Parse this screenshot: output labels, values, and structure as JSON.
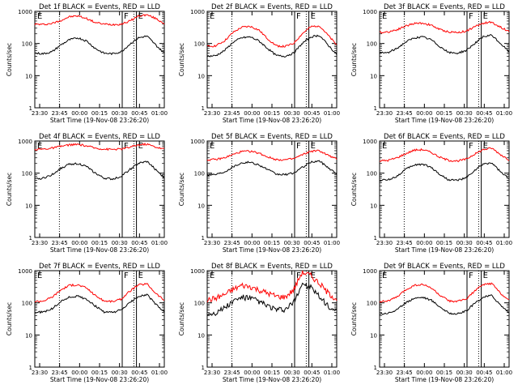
{
  "chart_data": [
    {
      "type": "line",
      "title": "Det 1f BLACK = Events, RED = LLD",
      "xlabel": "Start Time (19-Nov-08 23:26:20)",
      "ylabel": "Counts/sec",
      "xticks": [
        "23:30",
        "23:45",
        "00:00",
        "00:15",
        "00:30",
        "00:45",
        "01:00"
      ],
      "yticks": [
        "1",
        "10",
        "100",
        "1000"
      ],
      "yscale": "log",
      "ylim": [
        1,
        1000
      ],
      "markers": [
        "E",
        "F",
        "E"
      ],
      "series": [
        {
          "color": "#ff0000",
          "values": [
            400,
            390,
            420,
            520,
            680,
            720,
            600,
            450,
            400,
            390,
            400,
            500,
            720,
            780,
            600,
            420
          ]
        },
        {
          "color": "#000000",
          "values": [
            50,
            48,
            55,
            90,
            130,
            150,
            120,
            70,
            50,
            48,
            55,
            95,
            150,
            170,
            90,
            50
          ]
        }
      ]
    },
    {
      "type": "line",
      "title": "Det 2f BLACK = Events, RED = LLD",
      "xlabel": "Start Time (19-Nov-08 23:26:20)",
      "ylabel": "Counts/sec",
      "xticks": [
        "23:30",
        "23:45",
        "00:00",
        "00:15",
        "00:30",
        "00:45",
        "01:00"
      ],
      "yticks": [
        "1",
        "10",
        "100",
        "1000"
      ],
      "yscale": "log",
      "ylim": [
        1,
        1000
      ],
      "markers": [
        "E",
        "F",
        "E"
      ],
      "series": [
        {
          "color": "#ff0000",
          "values": [
            80,
            85,
            120,
            220,
            320,
            340,
            260,
            140,
            85,
            80,
            100,
            200,
            330,
            360,
            180,
            90
          ]
        },
        {
          "color": "#000000",
          "values": [
            40,
            42,
            60,
            110,
            150,
            160,
            120,
            70,
            42,
            40,
            50,
            100,
            160,
            180,
            90,
            45
          ]
        }
      ]
    },
    {
      "type": "line",
      "title": "Det 3f BLACK = Events, RED = LLD",
      "xlabel": "Start Time (19-Nov-08 23:26:20)",
      "ylabel": "Counts/sec",
      "xticks": [
        "23:30",
        "23:45",
        "00:00",
        "00:15",
        "00:30",
        "00:45",
        "01:00"
      ],
      "yticks": [
        "1",
        "10",
        "100",
        "1000"
      ],
      "yscale": "log",
      "ylim": [
        1,
        1000
      ],
      "markers": [
        "E",
        "F",
        "E"
      ],
      "series": [
        {
          "color": "#ff0000",
          "values": [
            220,
            230,
            270,
            350,
            420,
            430,
            370,
            270,
            230,
            220,
            240,
            330,
            430,
            460,
            320,
            240
          ]
        },
        {
          "color": "#000000",
          "values": [
            50,
            52,
            70,
            110,
            150,
            160,
            130,
            80,
            52,
            50,
            60,
            100,
            160,
            180,
            100,
            55
          ]
        }
      ]
    },
    {
      "type": "line",
      "title": "Det 4f BLACK = Events, RED = LLD",
      "xlabel": "Start Time (19-Nov-08 23:26:20)",
      "ylabel": "Counts/sec",
      "xticks": [
        "23:30",
        "23:45",
        "00:00",
        "00:15",
        "00:30",
        "00:45",
        "01:00"
      ],
      "yticks": [
        "1",
        "10",
        "100",
        "1000"
      ],
      "yscale": "log",
      "ylim": [
        1,
        1000
      ],
      "markers": [
        "E",
        "F",
        "E"
      ],
      "series": [
        {
          "color": "#ff0000",
          "values": [
            550,
            560,
            600,
            680,
            760,
            780,
            700,
            600,
            560,
            550,
            560,
            640,
            760,
            800,
            650,
            560
          ]
        },
        {
          "color": "#000000",
          "values": [
            65,
            70,
            90,
            140,
            190,
            200,
            160,
            100,
            70,
            65,
            80,
            130,
            200,
            230,
            130,
            70
          ]
        }
      ]
    },
    {
      "type": "line",
      "title": "Det 5f BLACK = Events, RED = LLD",
      "xlabel": "Start Time (19-Nov-08 23:26:20)",
      "ylabel": "Counts/sec",
      "xticks": [
        "23:30",
        "23:45",
        "00:00",
        "00:15",
        "00:30",
        "00:45",
        "01:00"
      ],
      "yticks": [
        "1",
        "10",
        "100",
        "1000"
      ],
      "yscale": "log",
      "ylim": [
        1,
        1000
      ],
      "markers": [
        "E",
        "F",
        "E"
      ],
      "series": [
        {
          "color": "#ff0000",
          "values": [
            260,
            265,
            300,
            380,
            470,
            480,
            420,
            320,
            265,
            260,
            280,
            370,
            480,
            500,
            360,
            270
          ]
        },
        {
          "color": "#000000",
          "values": [
            90,
            92,
            110,
            160,
            210,
            220,
            180,
            130,
            92,
            90,
            100,
            150,
            220,
            240,
            150,
            95
          ]
        }
      ]
    },
    {
      "type": "line",
      "title": "Det 6f BLACK = Events, RED = LLD",
      "xlabel": "Start Time (19-Nov-08 23:26:20)",
      "ylabel": "Counts/sec",
      "xticks": [
        "23:30",
        "23:45",
        "00:00",
        "00:15",
        "00:30",
        "00:45",
        "01:00"
      ],
      "yticks": [
        "1",
        "10",
        "100",
        "1000"
      ],
      "yscale": "log",
      "ylim": [
        1,
        1000
      ],
      "markers": [
        "E",
        "F",
        "E"
      ],
      "series": [
        {
          "color": "#ff0000",
          "values": [
            240,
            250,
            300,
            400,
            520,
            540,
            440,
            310,
            250,
            240,
            270,
            390,
            540,
            600,
            380,
            260
          ]
        },
        {
          "color": "#000000",
          "values": [
            60,
            62,
            80,
            130,
            180,
            190,
            150,
            90,
            62,
            60,
            70,
            120,
            190,
            210,
            110,
            65
          ]
        }
      ]
    },
    {
      "type": "line",
      "title": "Det 7f BLACK = Events, RED = LLD",
      "xlabel": "Start Time (19-Nov-08 23:26:20)",
      "ylabel": "Counts/sec",
      "xticks": [
        "23:30",
        "23:45",
        "00:00",
        "00:15",
        "00:30",
        "00:45",
        "01:00"
      ],
      "yticks": [
        "1",
        "10",
        "100",
        "1000"
      ],
      "yscale": "log",
      "ylim": [
        1,
        1000
      ],
      "markers": [
        "E",
        "F",
        "E"
      ],
      "series": [
        {
          "color": "#ff0000",
          "values": [
            110,
            115,
            150,
            250,
            350,
            360,
            290,
            170,
            115,
            110,
            130,
            230,
            360,
            390,
            200,
            120
          ]
        },
        {
          "color": "#000000",
          "values": [
            50,
            52,
            65,
            110,
            150,
            160,
            130,
            80,
            52,
            50,
            60,
            100,
            160,
            180,
            90,
            52
          ]
        }
      ]
    },
    {
      "type": "line",
      "title": "Det 8f BLACK = Events, RED = LLD",
      "xlabel": "Start Time (19-Nov-08 23:26:20)",
      "ylabel": "Counts/sec",
      "xticks": [
        "23:30",
        "23:45",
        "00:00",
        "00:15",
        "00:30",
        "00:45",
        "01:00"
      ],
      "yticks": [
        "1",
        "10",
        "100",
        "1000"
      ],
      "yscale": "log",
      "ylim": [
        1,
        1000
      ],
      "markers": [
        "E",
        "F",
        "E"
      ],
      "series": [
        {
          "color": "#ff0000",
          "values": [
            120,
            140,
            180,
            260,
            350,
            320,
            250,
            200,
            160,
            150,
            250,
            900,
            700,
            400,
            200,
            130
          ]
        },
        {
          "color": "#000000",
          "values": [
            45,
            50,
            70,
            110,
            150,
            140,
            110,
            80,
            60,
            60,
            100,
            400,
            300,
            150,
            80,
            50
          ]
        }
      ]
    },
    {
      "type": "line",
      "title": "Det 9f BLACK = Events, RED = LLD",
      "xlabel": "Start Time (19-Nov-08 23:26:20)",
      "ylabel": "Counts/sec",
      "xticks": [
        "23:30",
        "23:45",
        "00:00",
        "00:15",
        "00:30",
        "00:45",
        "01:00"
      ],
      "yticks": [
        "1",
        "10",
        "100",
        "1000"
      ],
      "yscale": "log",
      "ylim": [
        1,
        1000
      ],
      "markers": [
        "E",
        "F",
        "E"
      ],
      "series": [
        {
          "color": "#ff0000",
          "values": [
            110,
            115,
            150,
            250,
            350,
            370,
            290,
            170,
            115,
            110,
            130,
            230,
            370,
            400,
            200,
            120
          ]
        },
        {
          "color": "#000000",
          "values": [
            45,
            48,
            60,
            100,
            140,
            150,
            120,
            75,
            48,
            45,
            55,
            95,
            150,
            170,
            85,
            50
          ]
        }
      ]
    }
  ]
}
